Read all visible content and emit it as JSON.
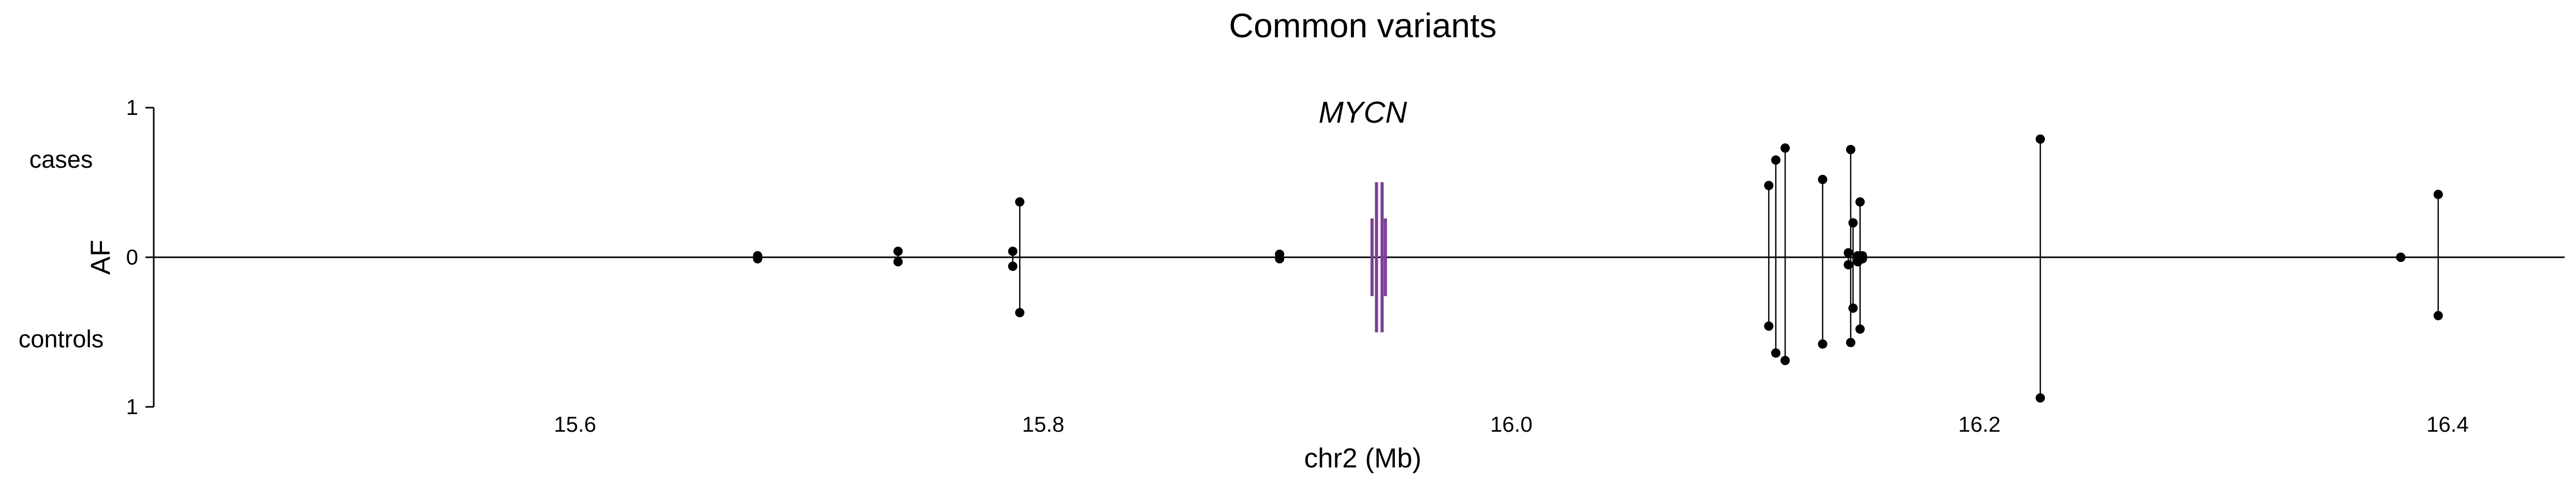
{
  "chart_data": {
    "type": "scatter",
    "title": "Common variants",
    "xlabel": "chr2 (Mb)",
    "ylabel": "AF",
    "xlim": [
      15.42,
      16.45
    ],
    "ylim": [
      -1,
      1
    ],
    "xticks": [
      15.6,
      15.8,
      16.0,
      16.2,
      16.4
    ],
    "xtick_labels": [
      "15.6",
      "15.8",
      "16.0",
      "16.2",
      "16.4"
    ],
    "yticks": [
      1,
      0,
      -1
    ],
    "ytick_labels": [
      "1",
      "0",
      "1"
    ],
    "group_labels": {
      "cases": "cases",
      "controls": "controls"
    },
    "gene": {
      "name": "MYCN",
      "start": 15.9402,
      "end": 15.9465,
      "exons": [
        15.9405,
        15.9424,
        15.9448,
        15.9462
      ],
      "color": "#7b3f98"
    },
    "variants": [
      {
        "pos": 15.678,
        "cases_af": 0.01,
        "controls_af": 0.01
      },
      {
        "pos": 15.738,
        "cases_af": 0.04,
        "controls_af": 0.03
      },
      {
        "pos": 15.787,
        "cases_af": 0.04,
        "controls_af": 0.06
      },
      {
        "pos": 15.79,
        "cases_af": 0.37,
        "controls_af": 0.37
      },
      {
        "pos": 15.901,
        "cases_af": 0.02,
        "controls_af": 0.01
      },
      {
        "pos": 16.11,
        "cases_af": 0.48,
        "controls_af": 0.46
      },
      {
        "pos": 16.113,
        "cases_af": 0.65,
        "controls_af": 0.64
      },
      {
        "pos": 16.117,
        "cases_af": 0.73,
        "controls_af": 0.69
      },
      {
        "pos": 16.133,
        "cases_af": 0.52,
        "controls_af": 0.58
      },
      {
        "pos": 16.144,
        "cases_af": 0.03,
        "controls_af": 0.05
      },
      {
        "pos": 16.145,
        "cases_af": 0.72,
        "controls_af": 0.57
      },
      {
        "pos": 16.146,
        "cases_af": 0.23,
        "controls_af": 0.34
      },
      {
        "pos": 16.148,
        "cases_af": 0.01,
        "controls_af": 0.03
      },
      {
        "pos": 16.149,
        "cases_af": 0.37,
        "controls_af": 0.48
      },
      {
        "pos": 16.15,
        "cases_af": 0.01,
        "controls_af": 0.01
      },
      {
        "pos": 16.226,
        "cases_af": 0.79,
        "controls_af": 0.94
      },
      {
        "pos": 16.38,
        "cases_af": 0.0,
        "controls_af": 0.0
      },
      {
        "pos": 16.396,
        "cases_af": 0.42,
        "controls_af": 0.39
      }
    ]
  }
}
